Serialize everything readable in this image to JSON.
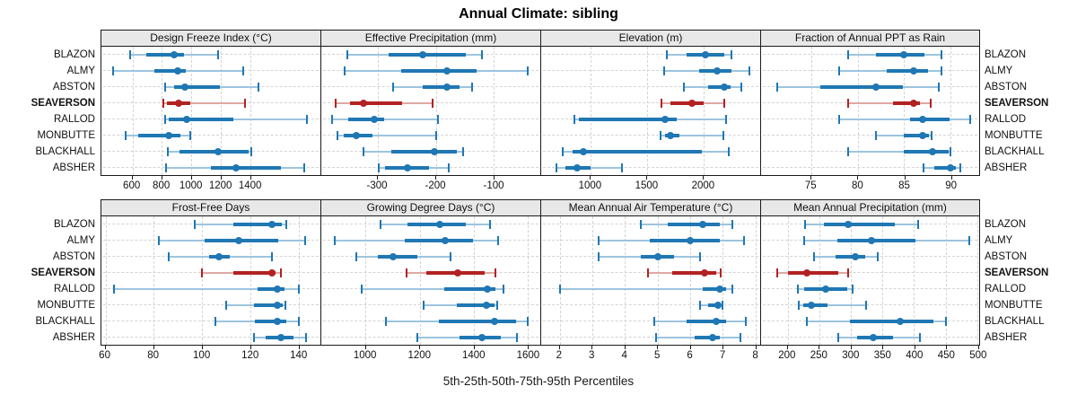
{
  "title": "Annual Climate: sibling",
  "footer_label": "5th-25th-50th-75th-95th Percentiles",
  "stations": [
    "BLAZON",
    "ALMY",
    "ABSTON",
    "SEAVERSON",
    "RALLOD",
    "MONBUTTE",
    "BLACKHALL",
    "ABSHER"
  ],
  "highlight_station": "SEAVERSON",
  "colors": {
    "normal": "#1f77b4",
    "normal_light": "#9dc4de",
    "highlight": "#b22222",
    "highlight_light": "#dfa8a4",
    "header_bg": "#e8e8e8",
    "grid": "#d4d4d4",
    "border": "#1a1a1a"
  },
  "chart_data": [
    {
      "type": "dot-whisker",
      "panel": "Design Freeze Index (°C)",
      "row": "top",
      "xlim": [
        390,
        1875
      ],
      "ticks": [
        600,
        800,
        1000,
        1200,
        1400
      ],
      "percentile_labels": [
        "5th",
        "25th",
        "50th",
        "75th",
        "95th"
      ],
      "series": [
        {
          "name": "BLAZON",
          "values": [
            585,
            695,
            885,
            950,
            1180
          ]
        },
        {
          "name": "ALMY",
          "values": [
            470,
            750,
            905,
            965,
            1350
          ]
        },
        {
          "name": "ABSTON",
          "values": [
            825,
            885,
            955,
            1195,
            1455
          ]
        },
        {
          "name": "SEAVERSON",
          "values": [
            810,
            835,
            915,
            995,
            1365
          ]
        },
        {
          "name": "RALLOD",
          "values": [
            825,
            845,
            970,
            1285,
            1785
          ]
        },
        {
          "name": "MONBUTTE",
          "values": [
            555,
            640,
            845,
            925,
            990
          ]
        },
        {
          "name": "BLACKHALL",
          "values": [
            840,
            920,
            1180,
            1390,
            1405
          ]
        },
        {
          "name": "ABSHER",
          "values": [
            830,
            1130,
            1300,
            1610,
            1765
          ]
        }
      ]
    },
    {
      "type": "dot-whisker",
      "panel": "Effective Precipitation (mm)",
      "row": "top",
      "xlim": [
        -397,
        -20
      ],
      "ticks": [
        -300,
        -200,
        -100
      ],
      "percentile_labels": [
        "5th",
        "25th",
        "50th",
        "75th",
        "95th"
      ],
      "series": [
        {
          "name": "BLAZON",
          "values": [
            -352,
            -281,
            -222,
            -148,
            -120
          ]
        },
        {
          "name": "ALMY",
          "values": [
            -357,
            -260,
            -180,
            -130,
            -41
          ]
        },
        {
          "name": "ABSTON",
          "values": [
            -274,
            -223,
            -180,
            -159,
            -137
          ]
        },
        {
          "name": "SEAVERSON",
          "values": [
            -372,
            -347,
            -325,
            -258,
            -205
          ]
        },
        {
          "name": "RALLOD",
          "values": [
            -378,
            -351,
            -306,
            -289,
            -196
          ]
        },
        {
          "name": "MONBUTTE",
          "values": [
            -369,
            -358,
            -336,
            -309,
            -199
          ]
        },
        {
          "name": "BLACKHALL",
          "values": [
            -325,
            -277,
            -203,
            -164,
            -153
          ]
        },
        {
          "name": "ABSHER",
          "values": [
            -298,
            -287,
            -249,
            -211,
            -178
          ]
        }
      ]
    },
    {
      "type": "dot-whisker",
      "panel": "Elevation (m)",
      "row": "top",
      "xlim": [
        560,
        2505
      ],
      "ticks": [
        1000,
        1500,
        2000
      ],
      "percentile_labels": [
        "5th",
        "25th",
        "50th",
        "75th",
        "95th"
      ],
      "series": [
        {
          "name": "BLAZON",
          "values": [
            1675,
            1855,
            2015,
            2185,
            2250
          ]
        },
        {
          "name": "ALMY",
          "values": [
            1655,
            1960,
            2120,
            2250,
            2410
          ]
        },
        {
          "name": "ABSTON",
          "values": [
            1830,
            2040,
            2185,
            2240,
            2340
          ]
        },
        {
          "name": "SEAVERSON",
          "values": [
            1630,
            1710,
            1900,
            2000,
            2185
          ]
        },
        {
          "name": "RALLOD",
          "values": [
            855,
            895,
            1660,
            1765,
            2205
          ]
        },
        {
          "name": "MONBUTTE",
          "values": [
            1620,
            1660,
            1710,
            1790,
            2180
          ]
        },
        {
          "name": "BLACKHALL",
          "values": [
            750,
            840,
            935,
            1985,
            2225
          ]
        },
        {
          "name": "ABSHER",
          "values": [
            695,
            775,
            880,
            1000,
            1275
          ]
        }
      ]
    },
    {
      "type": "dot-whisker",
      "panel": "Fraction of Annual PPT as Rain",
      "row": "top",
      "xlim": [
        69.6,
        93.1
      ],
      "ticks": [
        75,
        80,
        85,
        90
      ],
      "percentile_labels": [
        "5th",
        "25th",
        "50th",
        "75th",
        "95th"
      ],
      "series": [
        {
          "name": "BLAZON",
          "values": [
            79,
            82,
            85,
            87.2,
            89
          ]
        },
        {
          "name": "ALMY",
          "values": [
            78,
            83.1,
            86,
            87.6,
            89
          ]
        },
        {
          "name": "ABSTON",
          "values": [
            71.3,
            76,
            82,
            84.9,
            88.7
          ]
        },
        {
          "name": "SEAVERSON",
          "values": [
            79,
            83.8,
            86,
            86.7,
            87.9
          ]
        },
        {
          "name": "RALLOD",
          "values": [
            78,
            85.7,
            87,
            89.9,
            92.1
          ]
        },
        {
          "name": "MONBUTTE",
          "values": [
            82,
            85,
            87,
            87.7,
            88
          ]
        },
        {
          "name": "BLACKHALL",
          "values": [
            79,
            85,
            88.1,
            89.8,
            90
          ]
        },
        {
          "name": "ABSHER",
          "values": [
            87.1,
            88.3,
            90,
            90.6,
            91.1
          ]
        }
      ]
    },
    {
      "type": "dot-whisker",
      "panel": "Frost-Free Days",
      "row": "bottom",
      "xlim": [
        58.3,
        149
      ],
      "ticks": [
        60,
        80,
        100,
        120,
        140
      ],
      "percentile_labels": [
        "5th",
        "25th",
        "50th",
        "75th",
        "95th"
      ],
      "series": [
        {
          "name": "BLAZON",
          "values": [
            97,
            113,
            129,
            133,
            135
          ]
        },
        {
          "name": "ALMY",
          "values": [
            82,
            101,
            115,
            131.5,
            142.5
          ]
        },
        {
          "name": "ABSTON",
          "values": [
            86,
            103,
            107,
            111.5,
            129
          ]
        },
        {
          "name": "SEAVERSON",
          "values": [
            100,
            113,
            129,
            130.5,
            132.5
          ]
        },
        {
          "name": "RALLOD",
          "values": [
            63.5,
            123,
            131,
            134,
            140
          ]
        },
        {
          "name": "MONBUTTE",
          "values": [
            110,
            121.5,
            131,
            133.5,
            134.5
          ]
        },
        {
          "name": "BLACKHALL",
          "values": [
            105.5,
            122,
            131,
            135,
            140
          ]
        },
        {
          "name": "ABSHER",
          "values": [
            121.5,
            126.5,
            132.5,
            138,
            143
          ]
        }
      ]
    },
    {
      "type": "dot-whisker",
      "panel": "Growing Degree Days (°C)",
      "row": "bottom",
      "xlim": [
        836,
        1645
      ],
      "ticks": [
        1000,
        1200,
        1400,
        1600
      ],
      "percentile_labels": [
        "5th",
        "25th",
        "50th",
        "75th",
        "95th"
      ],
      "series": [
        {
          "name": "BLAZON",
          "values": [
            1055,
            1155,
            1275,
            1370,
            1460
          ]
        },
        {
          "name": "ALMY",
          "values": [
            885,
            1145,
            1295,
            1395,
            1490
          ]
        },
        {
          "name": "ABSTON",
          "values": [
            965,
            1045,
            1100,
            1190,
            1315
          ]
        },
        {
          "name": "SEAVERSON",
          "values": [
            1150,
            1225,
            1340,
            1440,
            1480
          ]
        },
        {
          "name": "RALLOD",
          "values": [
            985,
            1290,
            1450,
            1480,
            1510
          ]
        },
        {
          "name": "MONBUTTE",
          "values": [
            1215,
            1335,
            1445,
            1475,
            1485
          ]
        },
        {
          "name": "BLACKHALL",
          "values": [
            1075,
            1270,
            1475,
            1555,
            1600
          ]
        },
        {
          "name": "ABSHER",
          "values": [
            1190,
            1345,
            1430,
            1500,
            1560
          ]
        }
      ]
    },
    {
      "type": "dot-whisker",
      "panel": "Mean Annual Air Temperature (°C)",
      "row": "bottom",
      "xlim": [
        1.43,
        8.15
      ],
      "ticks": [
        2,
        3,
        4,
        5,
        6,
        7,
        8
      ],
      "percentile_labels": [
        "5th",
        "25th",
        "50th",
        "75th",
        "95th"
      ],
      "series": [
        {
          "name": "BLAZON",
          "values": [
            4.5,
            5.3,
            6.4,
            6.9,
            7.3
          ]
        },
        {
          "name": "ALMY",
          "values": [
            3.2,
            4.75,
            6.0,
            6.9,
            7.65
          ]
        },
        {
          "name": "ABSTON",
          "values": [
            3.2,
            4.5,
            5.0,
            5.5,
            6.3
          ]
        },
        {
          "name": "SEAVERSON",
          "values": [
            4.7,
            5.45,
            6.45,
            6.8,
            6.95
          ]
        },
        {
          "name": "RALLOD",
          "values": [
            2.0,
            6.4,
            6.9,
            7.1,
            7.3
          ]
        },
        {
          "name": "MONBUTTE",
          "values": [
            6.3,
            6.55,
            6.85,
            6.95,
            7.0
          ]
        },
        {
          "name": "BLACKHALL",
          "values": [
            4.9,
            5.9,
            6.8,
            7.1,
            7.7
          ]
        },
        {
          "name": "ABSHER",
          "values": [
            4.95,
            6.15,
            6.7,
            6.9,
            7.55
          ]
        }
      ]
    },
    {
      "type": "dot-whisker",
      "panel": "Mean Annual Precipitation (mm)",
      "row": "bottom",
      "xlim": [
        158,
        503
      ],
      "ticks": [
        200,
        250,
        300,
        350,
        400,
        450,
        500
      ],
      "percentile_labels": [
        "5th",
        "25th",
        "50th",
        "75th",
        "95th"
      ],
      "series": [
        {
          "name": "BLAZON",
          "values": [
            228,
            258,
            296,
            369,
            406
          ]
        },
        {
          "name": "ALMY",
          "values": [
            226,
            278,
            333,
            402,
            487
          ]
        },
        {
          "name": "ABSTON",
          "values": [
            242,
            276,
            307,
            322,
            342
          ]
        },
        {
          "name": "SEAVERSON",
          "values": [
            183,
            200,
            230,
            280,
            296
          ]
        },
        {
          "name": "RALLOD",
          "values": [
            216,
            226,
            260,
            295,
            303
          ]
        },
        {
          "name": "MONBUTTE",
          "values": [
            218,
            225,
            238,
            263,
            324
          ]
        },
        {
          "name": "BLACKHALL",
          "values": [
            230,
            299,
            378,
            430,
            451
          ]
        },
        {
          "name": "ABSHER",
          "values": [
            280,
            310,
            336,
            367,
            409
          ]
        }
      ]
    }
  ]
}
